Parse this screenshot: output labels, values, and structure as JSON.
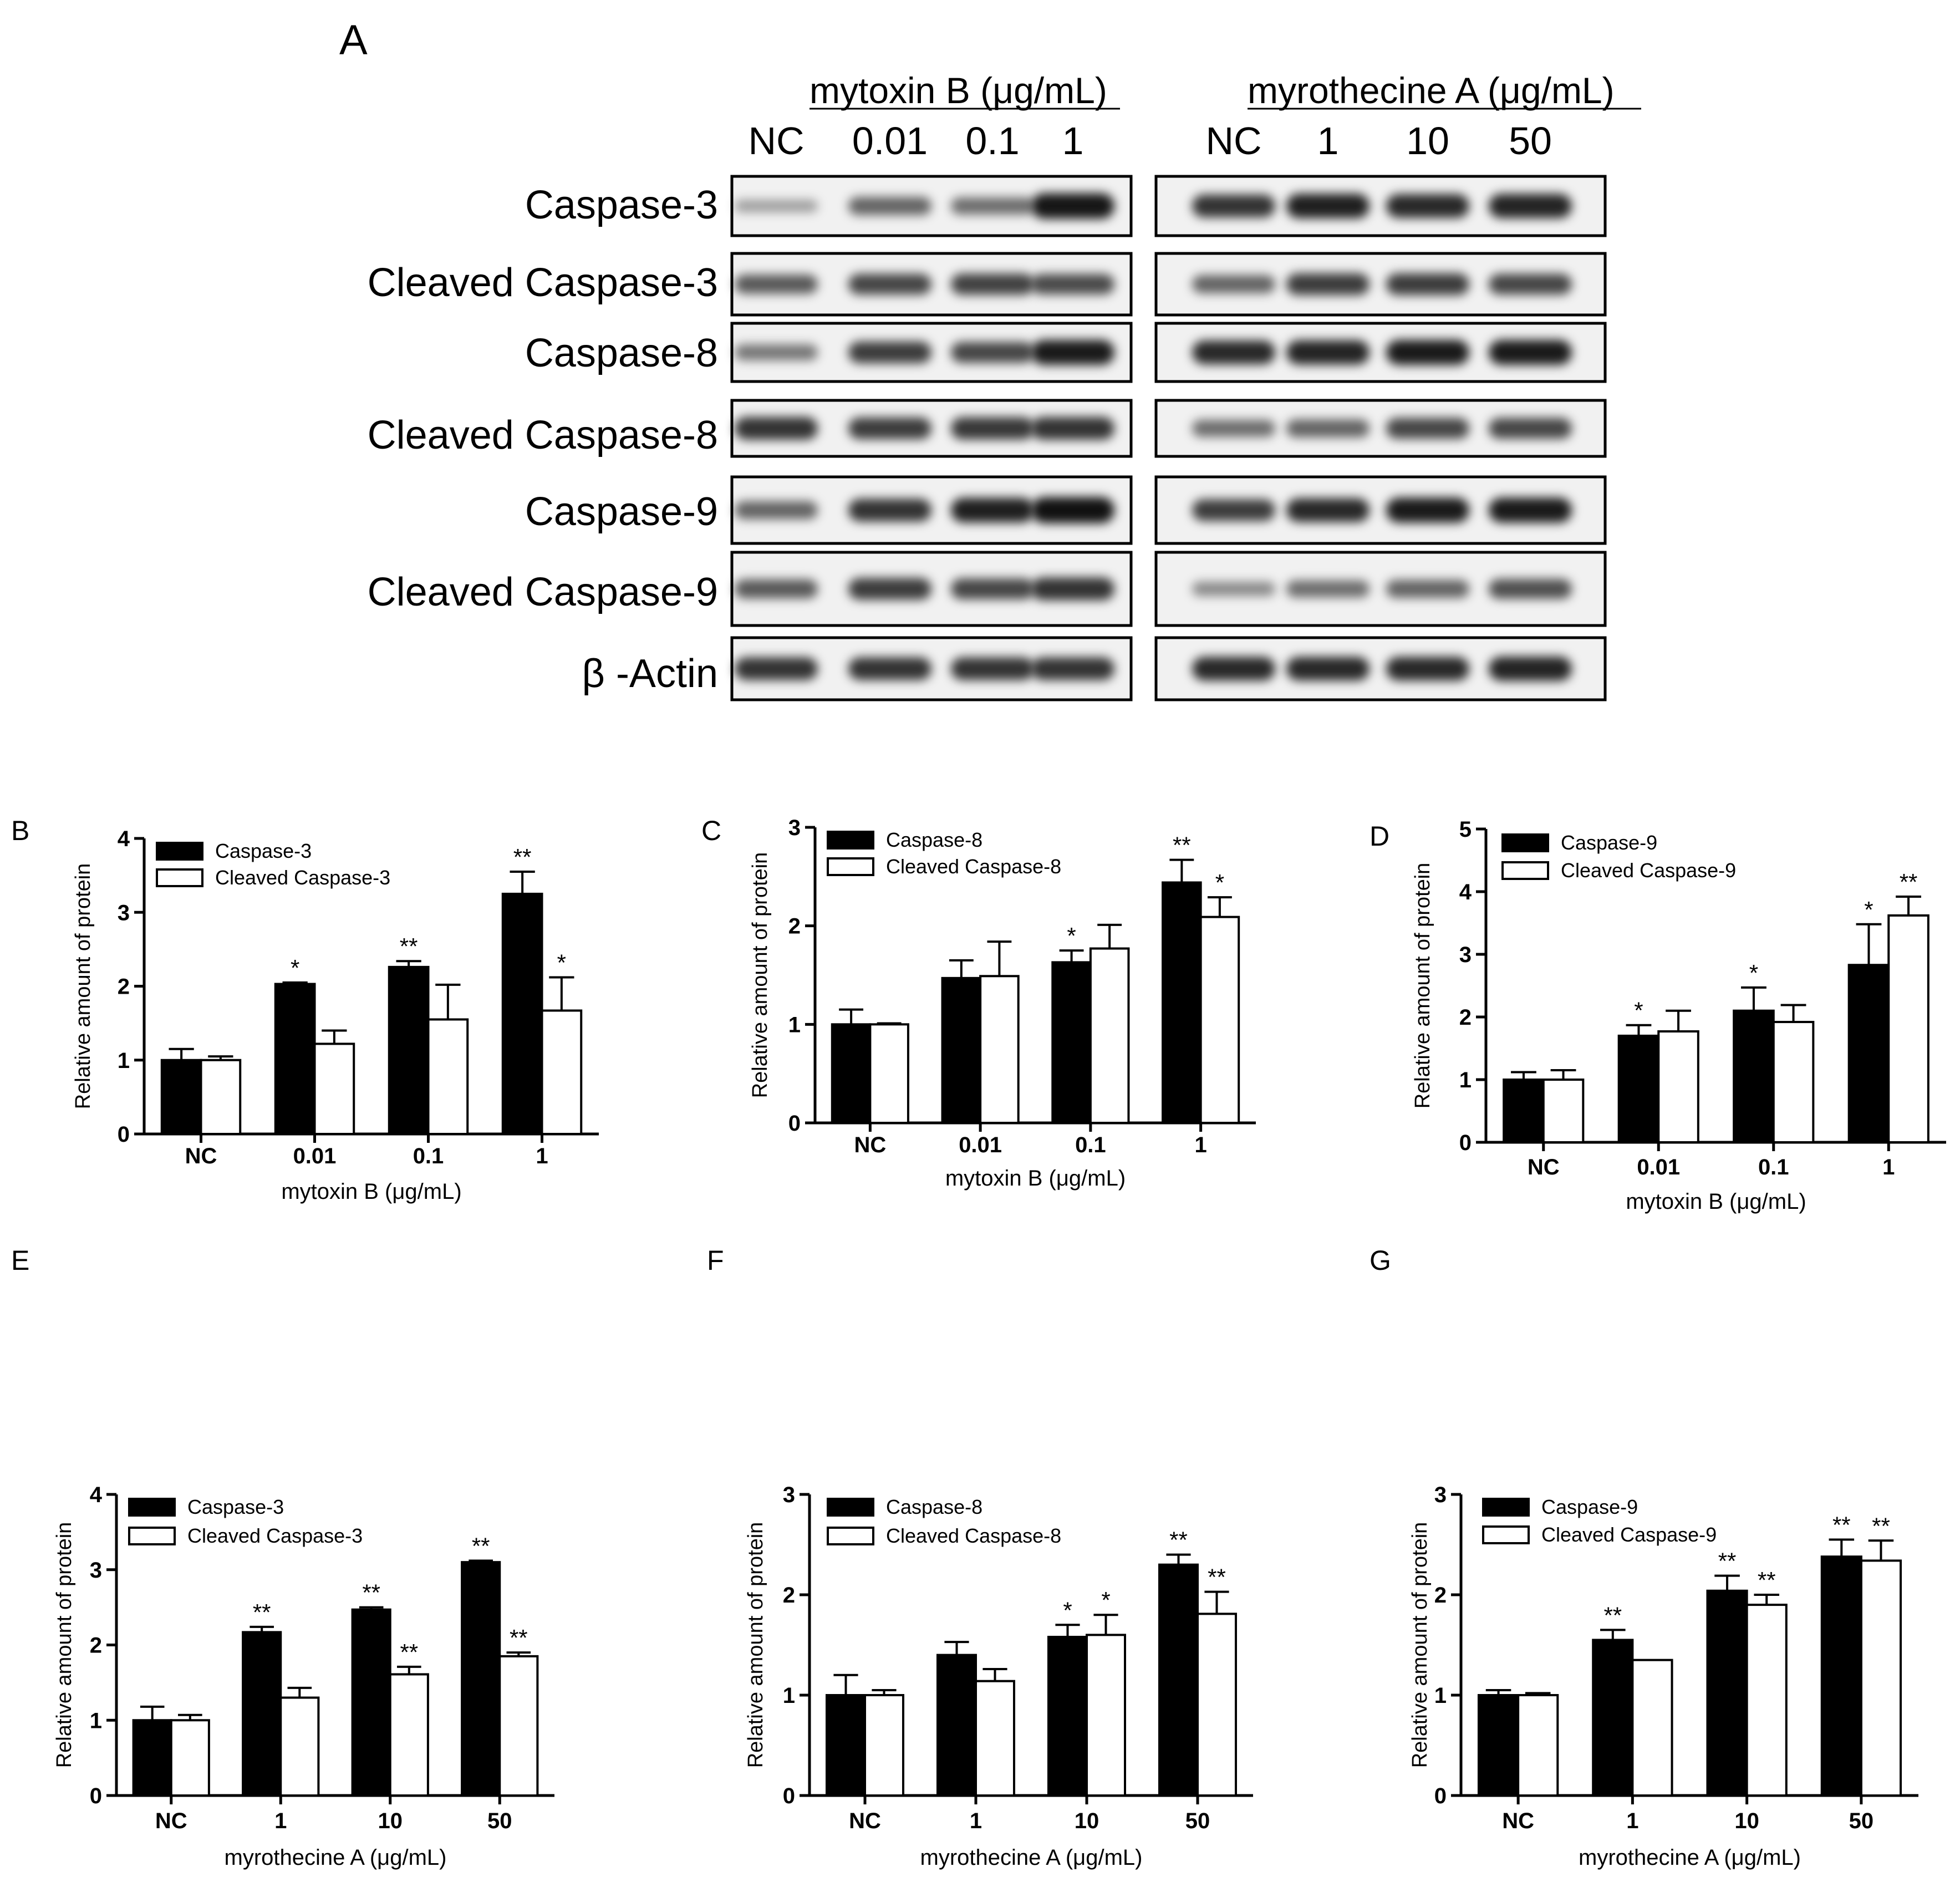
{
  "panel_a": {
    "label": "A",
    "groups": [
      {
        "title": "mytoxin B (μg/mL)",
        "lanes": [
          "NC",
          "0.01",
          "0.1",
          "1"
        ]
      },
      {
        "title": "myrothecine A (μg/mL)",
        "lanes": [
          "NC",
          "1",
          "10",
          "50"
        ]
      }
    ],
    "rows": [
      "Caspase-3",
      "Cleaved Caspase-3",
      "Caspase-8",
      "Cleaved Caspase-8",
      "Caspase-9",
      "Cleaved Caspase-9",
      "β -Actin"
    ],
    "band_intensity": [
      [
        [
          0.25,
          0.55,
          0.5,
          0.95
        ],
        [
          0.8,
          0.9,
          0.85,
          0.88
        ]
      ],
      [
        [
          0.6,
          0.7,
          0.72,
          0.68
        ],
        [
          0.55,
          0.75,
          0.75,
          0.7
        ]
      ],
      [
        [
          0.45,
          0.75,
          0.7,
          0.92
        ],
        [
          0.85,
          0.88,
          0.92,
          0.92
        ]
      ],
      [
        [
          0.8,
          0.75,
          0.78,
          0.8
        ],
        [
          0.5,
          0.55,
          0.7,
          0.7
        ]
      ],
      [
        [
          0.55,
          0.8,
          0.9,
          0.98
        ],
        [
          0.75,
          0.85,
          0.92,
          0.92
        ]
      ],
      [
        [
          0.6,
          0.75,
          0.7,
          0.8
        ],
        [
          0.35,
          0.5,
          0.55,
          0.65
        ]
      ],
      [
        [
          0.8,
          0.8,
          0.8,
          0.8
        ],
        [
          0.85,
          0.85,
          0.85,
          0.88
        ]
      ]
    ]
  },
  "chart_data": [
    {
      "panel": "B",
      "type": "bar",
      "categories": [
        "NC",
        "0.01",
        "0.1",
        "1"
      ],
      "series": [
        {
          "name": "Caspase-3",
          "color": "#000000",
          "values": [
            1.0,
            2.03,
            2.26,
            3.25
          ],
          "errors": [
            0.15,
            0.02,
            0.08,
            0.3
          ],
          "sig": [
            "",
            "*",
            "**",
            "**"
          ]
        },
        {
          "name": "Cleaved Caspase-3",
          "color": "#ffffff",
          "values": [
            1.0,
            1.22,
            1.55,
            1.67
          ],
          "errors": [
            0.05,
            0.18,
            0.47,
            0.45
          ],
          "sig": [
            "",
            "",
            "",
            "*"
          ]
        }
      ],
      "xlabel": "mytoxin B (μg/mL)",
      "ylabel": "Relative amount  of protein",
      "ylim": [
        0,
        4
      ],
      "yticks": [
        "0",
        "1",
        "2",
        "3",
        "4"
      ],
      "legend": "top-left"
    },
    {
      "panel": "C",
      "type": "bar",
      "categories": [
        "NC",
        "0.01",
        "0.1",
        "1"
      ],
      "series": [
        {
          "name": "Caspase-8",
          "color": "#000000",
          "values": [
            1.0,
            1.47,
            1.63,
            2.44
          ],
          "errors": [
            0.15,
            0.18,
            0.12,
            0.23
          ],
          "sig": [
            "",
            "",
            "*",
            "**"
          ]
        },
        {
          "name": "Cleaved Caspase-8",
          "color": "#ffffff",
          "values": [
            1.0,
            1.49,
            1.77,
            2.09
          ],
          "errors": [
            0.01,
            0.35,
            0.24,
            0.2
          ],
          "sig": [
            "",
            "",
            "",
            "*"
          ]
        }
      ],
      "xlabel": "mytoxin B (μg/mL)",
      "ylabel": "Relative amount of protein",
      "ylim": [
        0,
        3
      ],
      "yticks": [
        "0",
        "1",
        "2",
        "3"
      ],
      "legend": "top-left"
    },
    {
      "panel": "D",
      "type": "bar",
      "categories": [
        "NC",
        "0.01",
        "0.1",
        "1"
      ],
      "series": [
        {
          "name": "Caspase-9",
          "color": "#000000",
          "values": [
            1.0,
            1.7,
            2.1,
            2.83
          ],
          "errors": [
            0.12,
            0.17,
            0.37,
            0.65
          ],
          "sig": [
            "",
            "*",
            "*",
            "*"
          ]
        },
        {
          "name": "Cleaved Caspase-9",
          "color": "#ffffff",
          "values": [
            1.0,
            1.77,
            1.92,
            3.62
          ],
          "errors": [
            0.15,
            0.33,
            0.27,
            0.3
          ],
          "sig": [
            "",
            "",
            "",
            "**"
          ]
        }
      ],
      "xlabel": "mytoxin B (μg/mL)",
      "ylabel": "Relative amount of protein",
      "ylim": [
        0,
        5
      ],
      "yticks": [
        "0",
        "1",
        "2",
        "3",
        "4",
        "5"
      ],
      "legend": "top-left"
    },
    {
      "panel": "E",
      "type": "bar",
      "categories": [
        "NC",
        "1",
        "10",
        "50"
      ],
      "series": [
        {
          "name": "Caspase-3",
          "color": "#000000",
          "values": [
            1.0,
            2.17,
            2.47,
            3.1
          ],
          "errors": [
            0.18,
            0.07,
            0.03,
            0.02
          ],
          "sig": [
            "",
            "**",
            "**",
            "**"
          ]
        },
        {
          "name": "Cleaved Caspase-3",
          "color": "#ffffff",
          "values": [
            1.0,
            1.3,
            1.61,
            1.85
          ],
          "errors": [
            0.07,
            0.13,
            0.1,
            0.05
          ],
          "sig": [
            "",
            "",
            "**",
            "**"
          ]
        }
      ],
      "xlabel": "myrothecine A (μg/mL)",
      "ylabel": "Relative amount of protein",
      "ylim": [
        0,
        4
      ],
      "yticks": [
        "0",
        "1",
        "2",
        "3",
        "4"
      ],
      "legend": "top-left"
    },
    {
      "panel": "F",
      "type": "bar",
      "categories": [
        "NC",
        "1",
        "10",
        "50"
      ],
      "series": [
        {
          "name": "Caspase-8",
          "color": "#000000",
          "values": [
            1.0,
            1.4,
            1.58,
            2.3
          ],
          "errors": [
            0.2,
            0.13,
            0.12,
            0.1
          ],
          "sig": [
            "",
            "",
            "*",
            "**"
          ]
        },
        {
          "name": "Cleaved Caspase-8",
          "color": "#ffffff",
          "values": [
            1.0,
            1.14,
            1.6,
            1.81
          ],
          "errors": [
            0.05,
            0.12,
            0.2,
            0.22
          ],
          "sig": [
            "",
            "",
            "*",
            "**"
          ]
        }
      ],
      "xlabel": "myrothecine A (μg/mL)",
      "ylabel": "Relative amount of protein",
      "ylim": [
        0,
        3
      ],
      "yticks": [
        "0",
        "1",
        "2",
        "3"
      ],
      "legend": "top-left"
    },
    {
      "panel": "G",
      "type": "bar",
      "categories": [
        "NC",
        "1",
        "10",
        "50"
      ],
      "series": [
        {
          "name": "Caspase-9",
          "color": "#000000",
          "values": [
            1.0,
            1.55,
            2.04,
            2.38
          ],
          "errors": [
            0.05,
            0.1,
            0.15,
            0.17
          ],
          "sig": [
            "",
            "**",
            "**",
            "**"
          ]
        },
        {
          "name": "Cleaved Caspase-9",
          "color": "#ffffff",
          "values": [
            1.0,
            1.35,
            1.9,
            2.34
          ],
          "errors": [
            0.02,
            0.0,
            0.1,
            0.2
          ],
          "sig": [
            "",
            "",
            "**",
            "**"
          ]
        }
      ],
      "xlabel": "myrothecine A (μg/mL)",
      "ylabel": "Relative amount of protein",
      "ylim": [
        0,
        3
      ],
      "yticks": [
        "0",
        "1",
        "2",
        "3"
      ],
      "legend": "top-left"
    }
  ]
}
